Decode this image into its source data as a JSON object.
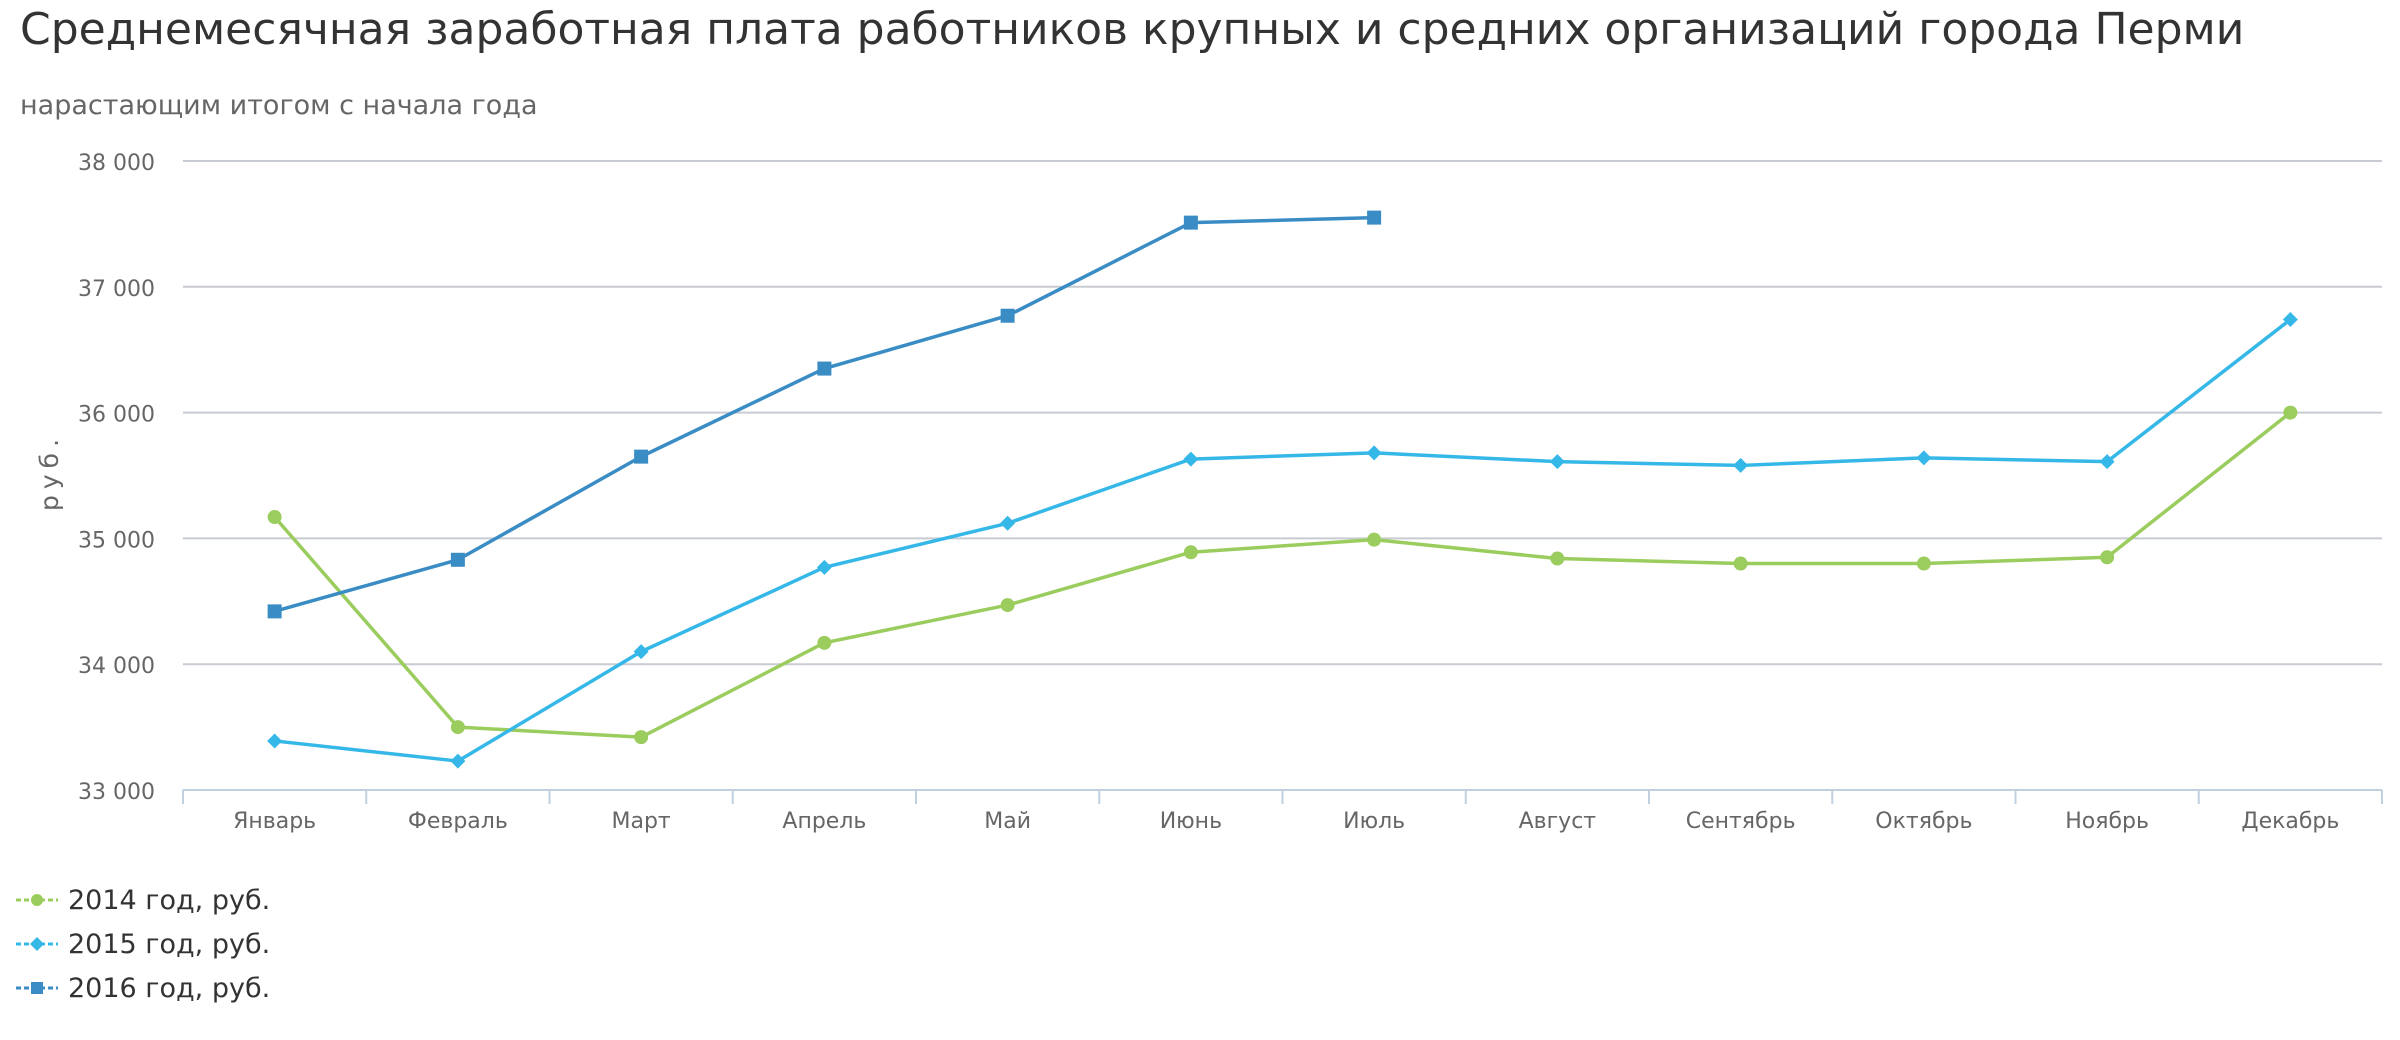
{
  "chart_data": {
    "type": "line",
    "title": "Среднемесячная заработная плата работников крупных и средних организаций города Перми",
    "subtitle": "нарастающим итогом с начала года",
    "xlabel": "",
    "ylabel": "руб.",
    "ylim": [
      33000,
      38000
    ],
    "yticks": [
      {
        "value": 33000,
        "label": "33 000"
      },
      {
        "value": 34000,
        "label": "34 000"
      },
      {
        "value": 35000,
        "label": "35 000"
      },
      {
        "value": 36000,
        "label": "36 000"
      },
      {
        "value": 37000,
        "label": "37 000"
      },
      {
        "value": 38000,
        "label": "38 000"
      }
    ],
    "categories": [
      "Январь",
      "Февраль",
      "Март",
      "Апрель",
      "Май",
      "Июнь",
      "Июль",
      "Август",
      "Сентябрь",
      "Октябрь",
      "Ноябрь",
      "Декабрь"
    ],
    "grid": true,
    "legend_position": "bottom-left",
    "series": [
      {
        "name": "2014 год, руб.",
        "color": "#9bcc5e",
        "marker": "circle",
        "values": [
          35170,
          33500,
          33420,
          34170,
          34470,
          34890,
          34990,
          34840,
          34800,
          34800,
          34850,
          36000
        ]
      },
      {
        "name": "2015 год, руб.",
        "color": "#35b8e8",
        "marker": "diamond",
        "values": [
          33390,
          33230,
          34100,
          34770,
          35120,
          35630,
          35680,
          35610,
          35580,
          35640,
          35610,
          36740
        ]
      },
      {
        "name": "2016 год, руб.",
        "color": "#3a8cc4",
        "marker": "square",
        "values": [
          34420,
          34830,
          35650,
          36350,
          36770,
          37510,
          37550,
          null,
          null,
          null,
          null,
          null
        ]
      }
    ]
  }
}
